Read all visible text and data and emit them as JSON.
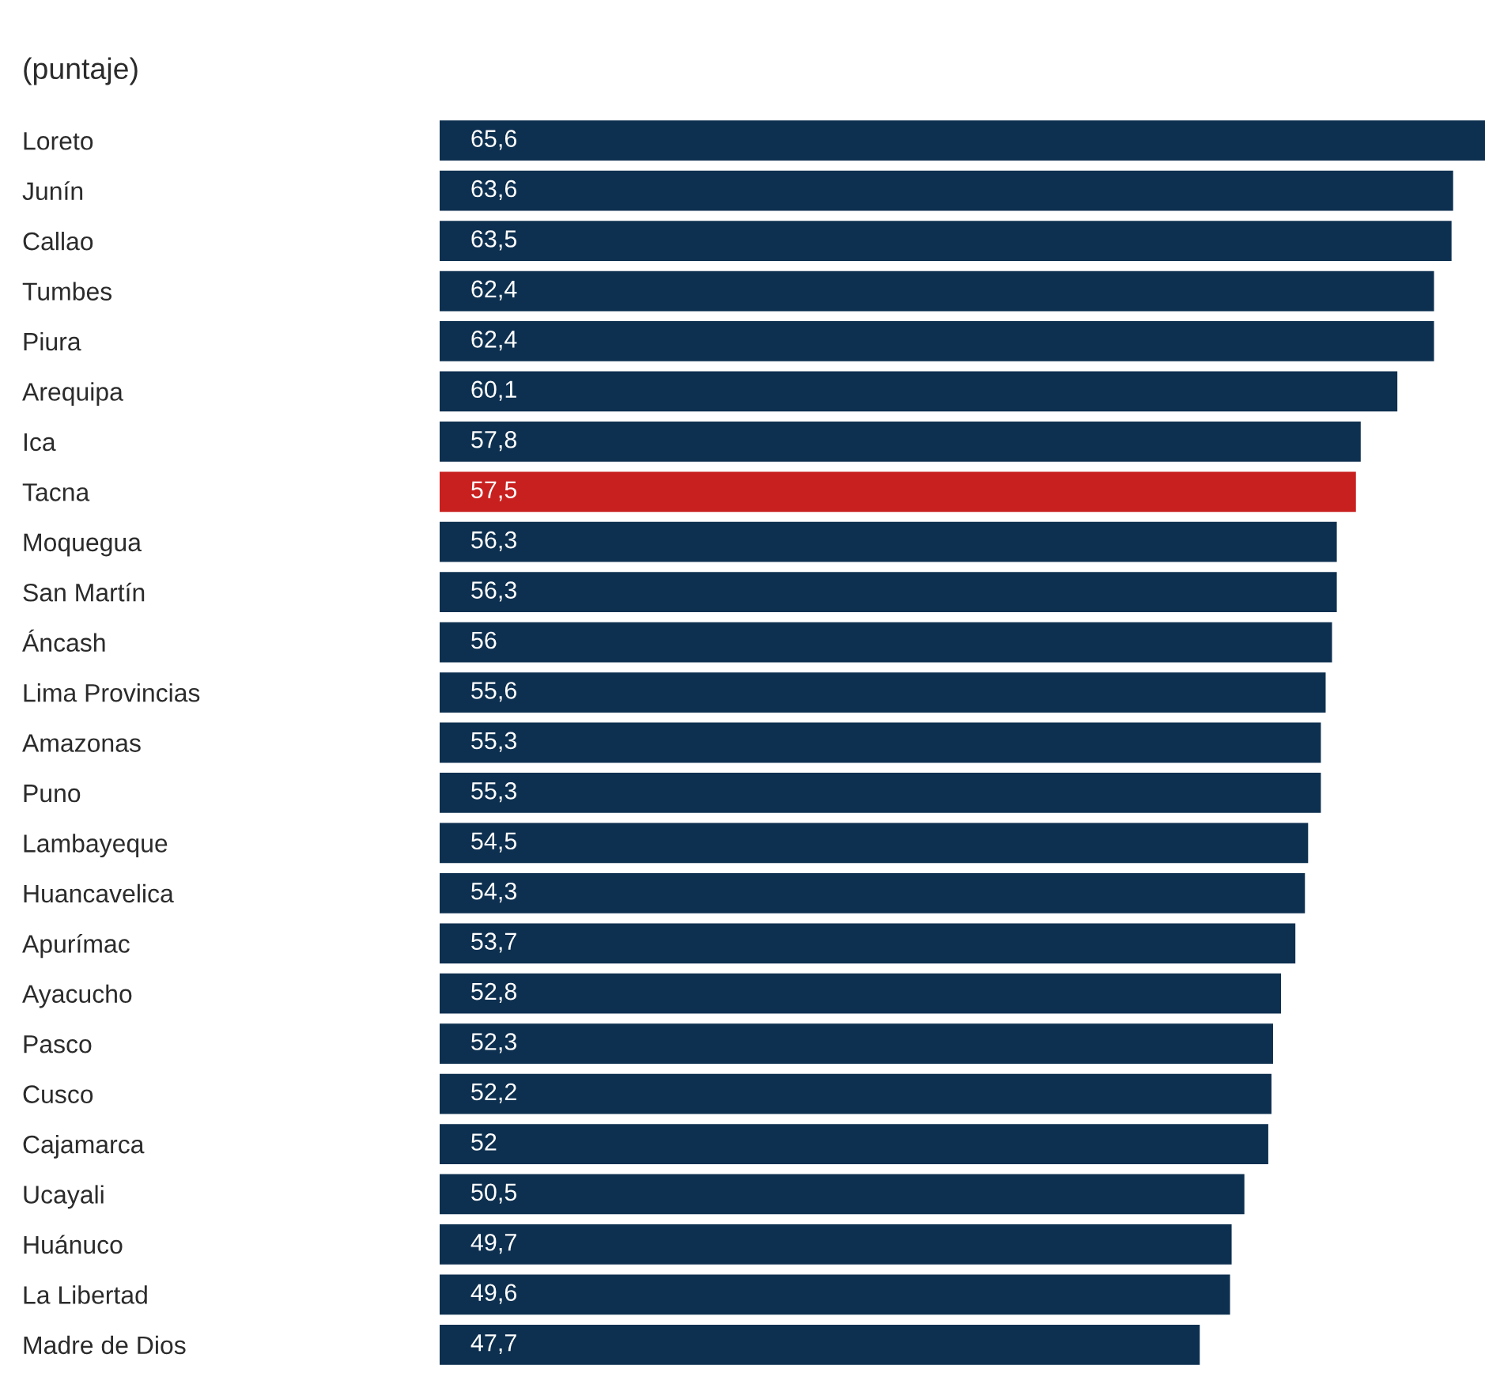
{
  "chart_data": {
    "type": "bar",
    "orientation": "horizontal",
    "subtitle": "(puntaje)",
    "categories": [
      "Loreto",
      "Junín",
      "Callao",
      "Tumbes",
      "Piura",
      "Arequipa",
      "Ica",
      "Tacna",
      "Moquegua",
      "San Martín",
      "Áncash",
      "Lima Provincias",
      "Amazonas",
      "Puno",
      "Lambayeque",
      "Huancavelica",
      "Apurímac",
      "Ayacucho",
      "Pasco",
      "Cusco",
      "Cajamarca",
      "Ucayali",
      "Huánuco",
      "La Libertad",
      "Madre de Dios"
    ],
    "values": [
      65.6,
      63.6,
      63.5,
      62.4,
      62.4,
      60.1,
      57.8,
      57.5,
      56.3,
      56.3,
      56,
      55.6,
      55.3,
      55.3,
      54.5,
      54.3,
      53.7,
      52.8,
      52.3,
      52.2,
      52,
      50.5,
      49.7,
      49.6,
      47.7
    ],
    "value_labels": [
      "65,6",
      "63,6",
      "63,5",
      "62,4",
      "62,4",
      "60,1",
      "57,8",
      "57,5",
      "56,3",
      "56,3",
      "56",
      "55,6",
      "55,3",
      "55,3",
      "54,5",
      "54,3",
      "53,7",
      "52,8",
      "52,3",
      "52,2",
      "52",
      "50,5",
      "49,7",
      "49,6",
      "47,7"
    ],
    "colors": [
      "#0e3050",
      "#0e3050",
      "#0e3050",
      "#0e3050",
      "#0e3050",
      "#0e3050",
      "#0e3050",
      "#c8201f",
      "#0e3050",
      "#0e3050",
      "#0e3050",
      "#0e3050",
      "#0e3050",
      "#0e3050",
      "#0e3050",
      "#0e3050",
      "#0e3050",
      "#0e3050",
      "#0e3050",
      "#0e3050",
      "#0e3050",
      "#0e3050",
      "#0e3050",
      "#0e3050",
      "#0e3050"
    ],
    "xlim": [
      0,
      65.6
    ],
    "tick_labels": "y",
    "grid": false,
    "legend": false
  }
}
